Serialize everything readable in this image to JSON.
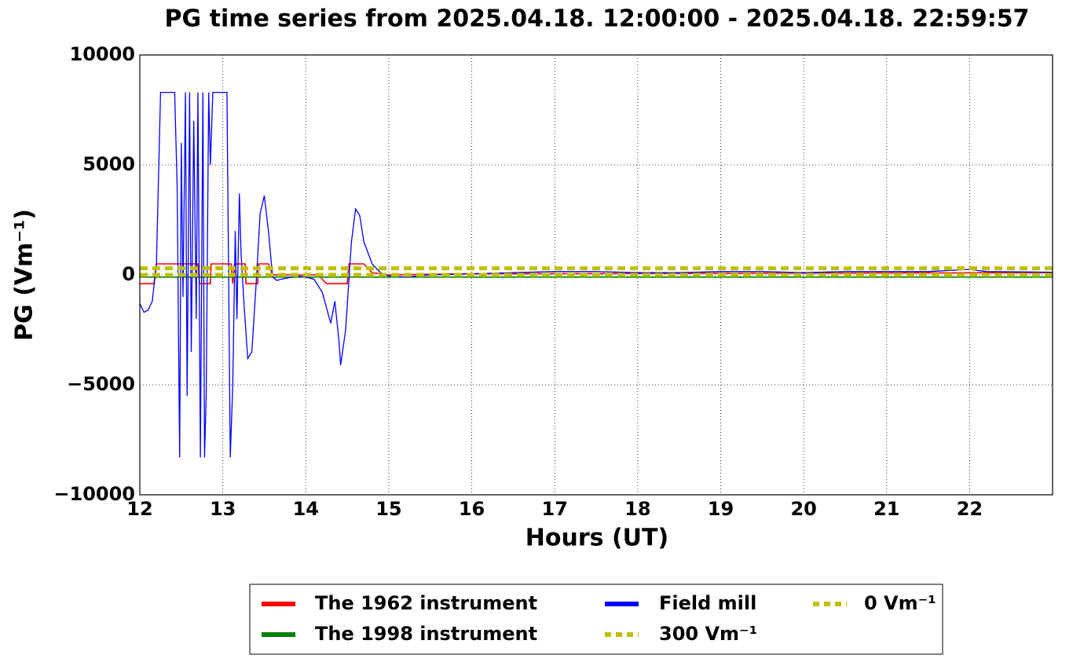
{
  "chart_data": {
    "type": "line",
    "title": "PG time series from 2025.04.18. 12:00:00 - 2025.04.18. 22:59:57",
    "x_label": "Hours (UT)",
    "y_label": "PG (Vm⁻¹)",
    "xlim": [
      12,
      22.9992
    ],
    "ylim": [
      -10000,
      10000
    ],
    "xticks": [
      12,
      13,
      14,
      15,
      16,
      17,
      18,
      19,
      20,
      21,
      22
    ],
    "yticks": [
      {
        "value": -10000,
        "label": "−10000"
      },
      {
        "value": -5000,
        "label": "−5000"
      },
      0,
      5000,
      10000
    ],
    "grid": true,
    "legend": "below",
    "series": [
      {
        "name": "The 1962 instrument",
        "color": "#ff0000",
        "style": "solid",
        "x": [
          12.0,
          12.17,
          12.2,
          12.7,
          12.72,
          12.85,
          12.86,
          13.1,
          13.12,
          13.14,
          13.27,
          13.28,
          13.42,
          13.43,
          13.55,
          13.6,
          14.15,
          14.25,
          14.5,
          14.52,
          14.7,
          14.8,
          15.0,
          16.0,
          22.9992
        ],
        "values": [
          -400,
          -400,
          500,
          500,
          -400,
          -400,
          500,
          500,
          -400,
          500,
          500,
          -400,
          -400,
          500,
          500,
          0,
          0,
          -400,
          -400,
          500,
          500,
          100,
          0,
          50,
          100
        ]
      },
      {
        "name": "The 1998 instrument",
        "color": "#008000",
        "style": "solid",
        "x": [
          12.0,
          22.9992
        ],
        "values": [
          -100,
          -100
        ]
      },
      {
        "name": "Field mill",
        "color": "#0000ff",
        "style": "solid",
        "x": [
          12.0,
          12.05,
          12.1,
          12.15,
          12.2,
          12.25,
          12.42,
          12.45,
          12.48,
          12.5,
          12.52,
          12.55,
          12.57,
          12.6,
          12.62,
          12.65,
          12.68,
          12.7,
          12.73,
          12.76,
          12.78,
          12.8,
          12.83,
          12.85,
          12.88,
          12.95,
          13.05,
          13.07,
          13.09,
          13.12,
          13.15,
          13.17,
          13.2,
          13.22,
          13.25,
          13.3,
          13.35,
          13.4,
          13.45,
          13.5,
          13.55,
          13.6,
          13.65,
          13.7,
          13.9,
          14.0,
          14.1,
          14.2,
          14.3,
          14.35,
          14.4,
          14.42,
          14.48,
          14.55,
          14.6,
          14.65,
          14.7,
          14.8,
          14.9,
          15.0,
          15.2,
          15.5,
          16.0,
          16.5,
          17.0,
          17.5,
          18.0,
          18.5,
          19.0,
          19.5,
          20.0,
          20.5,
          21.0,
          21.5,
          22.0,
          22.2,
          22.9992
        ],
        "values": [
          -1300,
          -1700,
          -1600,
          -1200,
          500,
          8300,
          8300,
          4000,
          -8300,
          6000,
          -1000,
          8300,
          -5500,
          8300,
          -3500,
          7000,
          -2000,
          8300,
          -8300,
          8300,
          -8300,
          -5500,
          8300,
          5000,
          8300,
          8300,
          8300,
          0,
          -8300,
          -5000,
          2000,
          -2000,
          3700,
          1000,
          -1000,
          -3800,
          -3500,
          -500,
          2800,
          3600,
          2000,
          -100,
          -250,
          -200,
          -50,
          -100,
          -200,
          -800,
          -2200,
          -1200,
          -3000,
          -4100,
          -2500,
          1500,
          3000,
          2700,
          1500,
          500,
          100,
          -50,
          -100,
          0,
          50,
          100,
          150,
          150,
          100,
          100,
          150,
          150,
          100,
          150,
          150,
          150,
          250,
          150,
          120
        ]
      },
      {
        "name": "300 Vm⁻¹",
        "color": "#bfbf00",
        "style": "dashed",
        "x": [
          12.0,
          22.9992
        ],
        "values": [
          300,
          300
        ]
      },
      {
        "name": "0 Vm⁻¹",
        "color": "#bfbf00",
        "style": "dashed",
        "x": [
          12.0,
          22.9992
        ],
        "values": [
          0,
          0
        ]
      }
    ]
  }
}
